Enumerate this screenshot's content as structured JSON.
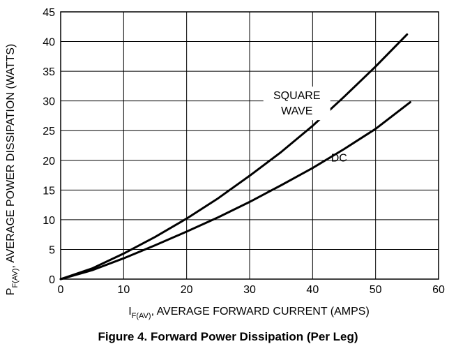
{
  "caption": "Figure 4. Forward Power Dissipation (Per Leg)",
  "chart_data": {
    "type": "line",
    "xlabel": {
      "main": "I",
      "sub": "F(AV)",
      "rest": ", AVERAGE FORWARD CURRENT (AMPS)"
    },
    "ylabel": {
      "main": "P",
      "sub": "F(AV)",
      "rest": ", AVERAGE POWER DISSIPATION (WATTS)"
    },
    "xlim": [
      0,
      60
    ],
    "ylim": [
      0,
      45
    ],
    "xticks": [
      0,
      10,
      20,
      30,
      40,
      50,
      60
    ],
    "yticks": [
      0,
      5,
      10,
      15,
      20,
      25,
      30,
      35,
      40,
      45
    ],
    "grid": true,
    "series": [
      {
        "name_lines": [
          "SQUARE",
          "WAVE"
        ],
        "x": [
          0,
          5,
          10,
          15,
          20,
          25,
          30,
          35,
          40,
          45,
          50,
          55
        ],
        "y": [
          0,
          1.8,
          4.3,
          7.1,
          10.2,
          13.6,
          17.4,
          21.4,
          25.8,
          30.7,
          35.8,
          41.2
        ]
      },
      {
        "name_lines": [
          "DC"
        ],
        "x": [
          0,
          5,
          10,
          15,
          20,
          25,
          30,
          35,
          40,
          45,
          50,
          55.5
        ],
        "y": [
          0,
          1.5,
          3.5,
          5.7,
          8.0,
          10.4,
          13.0,
          15.8,
          18.7,
          21.9,
          25.3,
          29.8
        ]
      }
    ]
  }
}
